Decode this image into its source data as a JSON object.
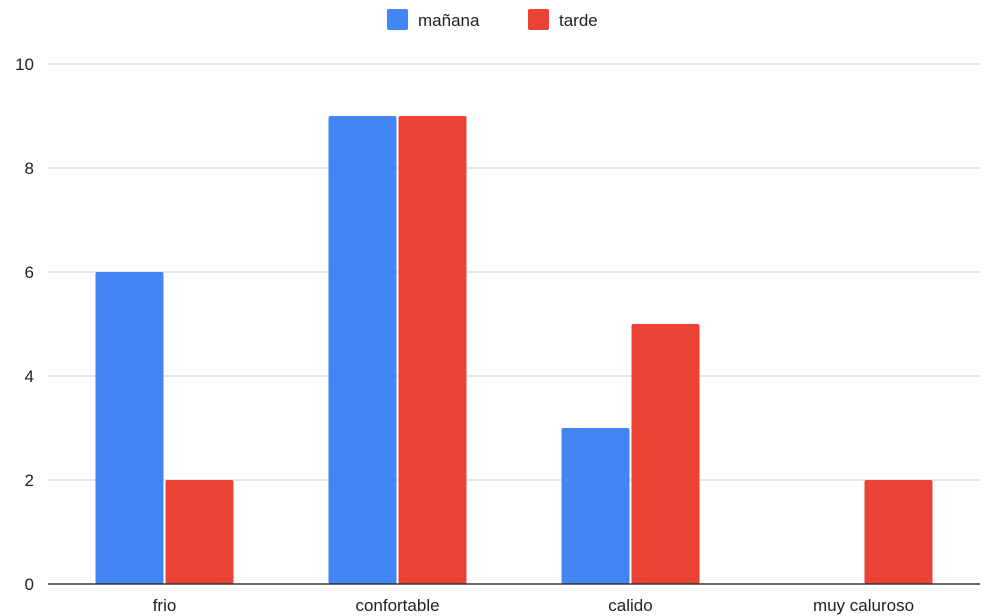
{
  "chart_data": {
    "type": "bar",
    "categories": [
      "frio",
      "confortable",
      "calido",
      "muy caluroso"
    ],
    "series": [
      {
        "name": "mañana",
        "color": "#4285f4",
        "values": [
          6,
          9,
          3,
          0
        ]
      },
      {
        "name": "tarde",
        "color": "#ea4335",
        "values": [
          2,
          9,
          5,
          2
        ]
      }
    ],
    "ylim": [
      0,
      10
    ],
    "yticks": [
      0,
      2,
      4,
      6,
      8,
      10
    ],
    "grid": true,
    "legend": "top-center"
  }
}
